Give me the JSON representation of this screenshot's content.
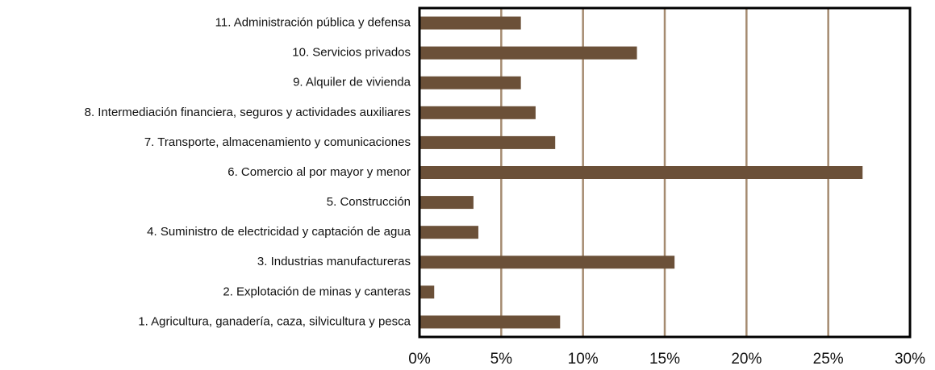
{
  "chart_data": {
    "type": "bar",
    "orientation": "horizontal",
    "categories": [
      "11. Administración pública y defensa",
      "10. Servicios privados",
      "9. Alquiler de vivienda",
      "8. Intermediación financiera, seguros y actividades auxiliares",
      "7. Transporte, almacenamiento y comunicaciones",
      "6. Comercio al por mayor y menor",
      "5. Construcción",
      "4. Suministro de electricidad y captación de agua",
      "3. Industrias manufactureras",
      "2. Explotación de minas y canteras",
      "1. Agricultura, ganadería, caza, silvicultura y pesca"
    ],
    "values": [
      6.2,
      13.3,
      6.2,
      7.1,
      8.3,
      27.1,
      3.3,
      3.6,
      15.6,
      0.9,
      8.6
    ],
    "color": "#6b5038",
    "grid_color": "#a58b70",
    "xlim": [
      0,
      30
    ],
    "xticks": [
      {
        "value": 0,
        "label": "0%"
      },
      {
        "value": 5,
        "label": "5%"
      },
      {
        "value": 10,
        "label": "10%"
      },
      {
        "value": 15,
        "label": "15%"
      },
      {
        "value": 20,
        "label": "20%"
      },
      {
        "value": 25,
        "label": "25%"
      },
      {
        "value": 30,
        "label": "30%"
      }
    ],
    "grid": true
  }
}
